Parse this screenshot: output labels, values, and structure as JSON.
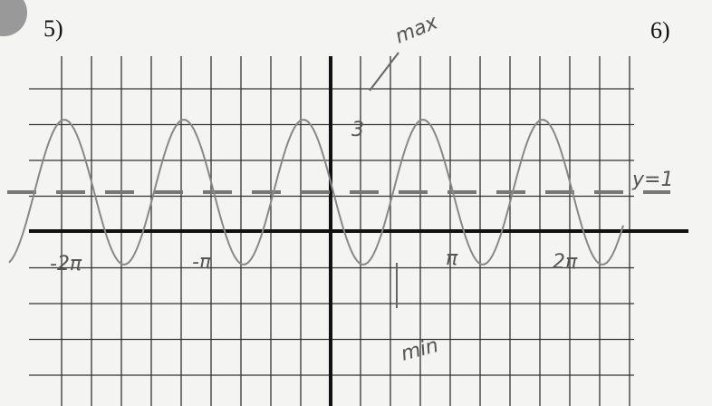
{
  "problems": [
    "5)",
    "6)"
  ],
  "annotations": {
    "max": "max",
    "max_value": "3",
    "midline": "y=1",
    "min": "min"
  },
  "x_labels": [
    "-2π",
    "-π",
    "π",
    "2π"
  ]
}
